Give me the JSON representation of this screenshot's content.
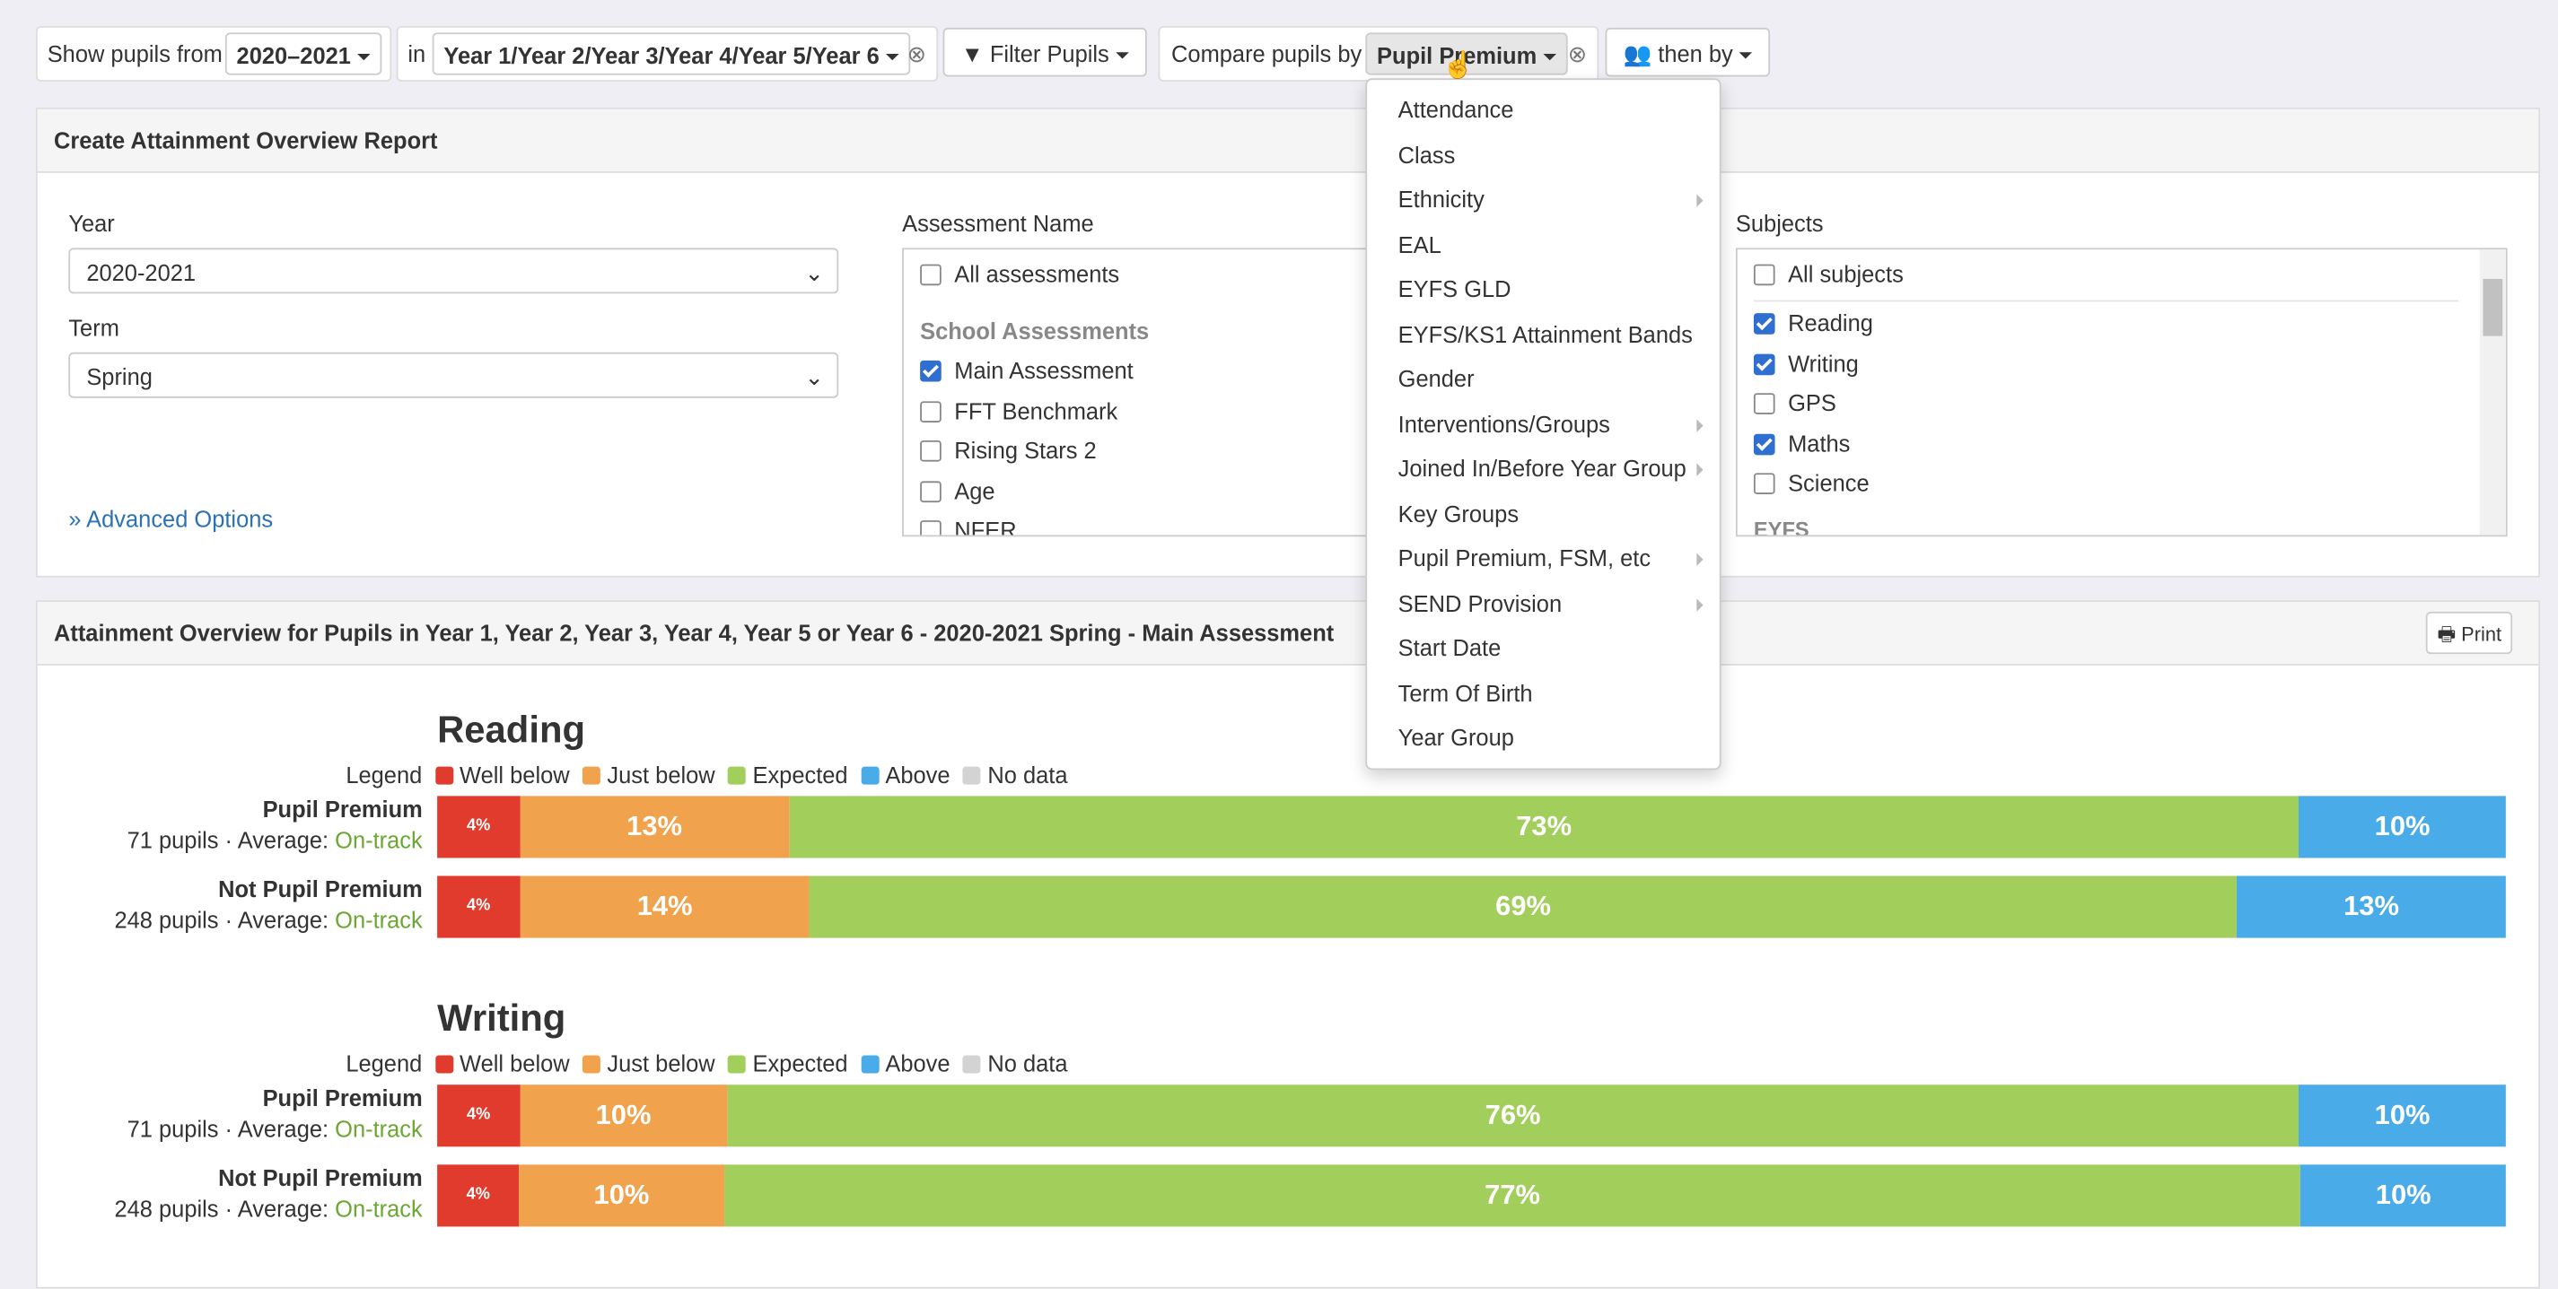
{
  "toolbar": {
    "show_label": "Show pupils from",
    "year": "2020–2021",
    "in_label": "in",
    "years": "Year 1/Year 2/Year 3/Year 4/Year 5/Year 6",
    "filter": "Filter Pupils",
    "compare_label": "Compare pupils by",
    "compare": "Pupil Premium",
    "then_by": "then by"
  },
  "dropdown": [
    {
      "label": "Attendance",
      "submenu": false
    },
    {
      "label": "Class",
      "submenu": false
    },
    {
      "label": "Ethnicity",
      "submenu": true
    },
    {
      "label": "EAL",
      "submenu": false
    },
    {
      "label": "EYFS GLD",
      "submenu": false
    },
    {
      "label": "EYFS/KS1 Attainment Bands",
      "submenu": false
    },
    {
      "label": "Gender",
      "submenu": false
    },
    {
      "label": "Interventions/Groups",
      "submenu": true
    },
    {
      "label": "Joined In/Before Year Group",
      "submenu": true
    },
    {
      "label": "Key Groups",
      "submenu": false
    },
    {
      "label": "Pupil Premium, FSM, etc",
      "submenu": true
    },
    {
      "label": "SEND Provision",
      "submenu": true
    },
    {
      "label": "Start Date",
      "submenu": false
    },
    {
      "label": "Term Of Birth",
      "submenu": false
    },
    {
      "label": "Year Group",
      "submenu": false
    }
  ],
  "create_panel": {
    "title": "Create Attainment Overview Report",
    "year_label": "Year",
    "year": "2020-2021",
    "term_label": "Term",
    "term": "Spring",
    "advanced": "Advanced Options",
    "assessment_label": "Assessment Name",
    "all_assessments": "All assessments",
    "assessment_group": "School Assessments",
    "assessments": [
      {
        "label": "Main Assessment",
        "checked": true
      },
      {
        "label": "FFT Benchmark",
        "checked": false
      },
      {
        "label": "Rising Stars 2",
        "checked": false
      },
      {
        "label": "Age",
        "checked": false
      },
      {
        "label": "NFER",
        "checked": false
      }
    ],
    "subjects_label": "Subjects",
    "all_subjects": "All subjects",
    "subjects": [
      {
        "label": "Reading",
        "checked": true
      },
      {
        "label": "Writing",
        "checked": true
      },
      {
        "label": "GPS",
        "checked": false
      },
      {
        "label": "Maths",
        "checked": true
      },
      {
        "label": "Science",
        "checked": false
      }
    ],
    "subject_group": "EYFS"
  },
  "overview": {
    "title": "Attainment Overview for Pupils in Year 1, Year 2, Year 3, Year 4, Year 5 or Year 6 - 2020-2021 Spring - Main Assessment",
    "print": "Print",
    "legend_label": "Legend",
    "legend": [
      {
        "name": "Well below",
        "color": "#e03b2c"
      },
      {
        "name": "Just below",
        "color": "#f0a24c"
      },
      {
        "name": "Expected",
        "color": "#a2cf5c"
      },
      {
        "name": "Above",
        "color": "#4aabe9"
      },
      {
        "name": "No data",
        "color": "#d3d3d3"
      }
    ],
    "subjects": [
      {
        "name": "Reading",
        "rows": [
          {
            "group": "Pupil Premium",
            "pupils": "71 pupils · Average:",
            "average": "On-track",
            "values": [
              4,
              13,
              73,
              10
            ],
            "value_labels": [
              "4%",
              "13%",
              "73%",
              "10%"
            ]
          },
          {
            "group": "Not Pupil Premium",
            "pupils": "248 pupils · Average:",
            "average": "On-track",
            "values": [
              4,
              14,
              69,
              13
            ],
            "value_labels": [
              "4%",
              "14%",
              "69%",
              "13%"
            ]
          }
        ]
      },
      {
        "name": "Writing",
        "rows": [
          {
            "group": "Pupil Premium",
            "pupils": "71 pupils · Average:",
            "average": "On-track",
            "values": [
              4,
              10,
              76,
              10
            ],
            "value_labels": [
              "4%",
              "10%",
              "76%",
              "10%"
            ]
          },
          {
            "group": "Not Pupil Premium",
            "pupils": "248 pupils · Average:",
            "average": "On-track",
            "values": [
              4,
              10,
              77,
              10
            ],
            "value_labels": [
              "4%",
              "10%",
              "77%",
              "10%"
            ]
          }
        ]
      }
    ]
  }
}
